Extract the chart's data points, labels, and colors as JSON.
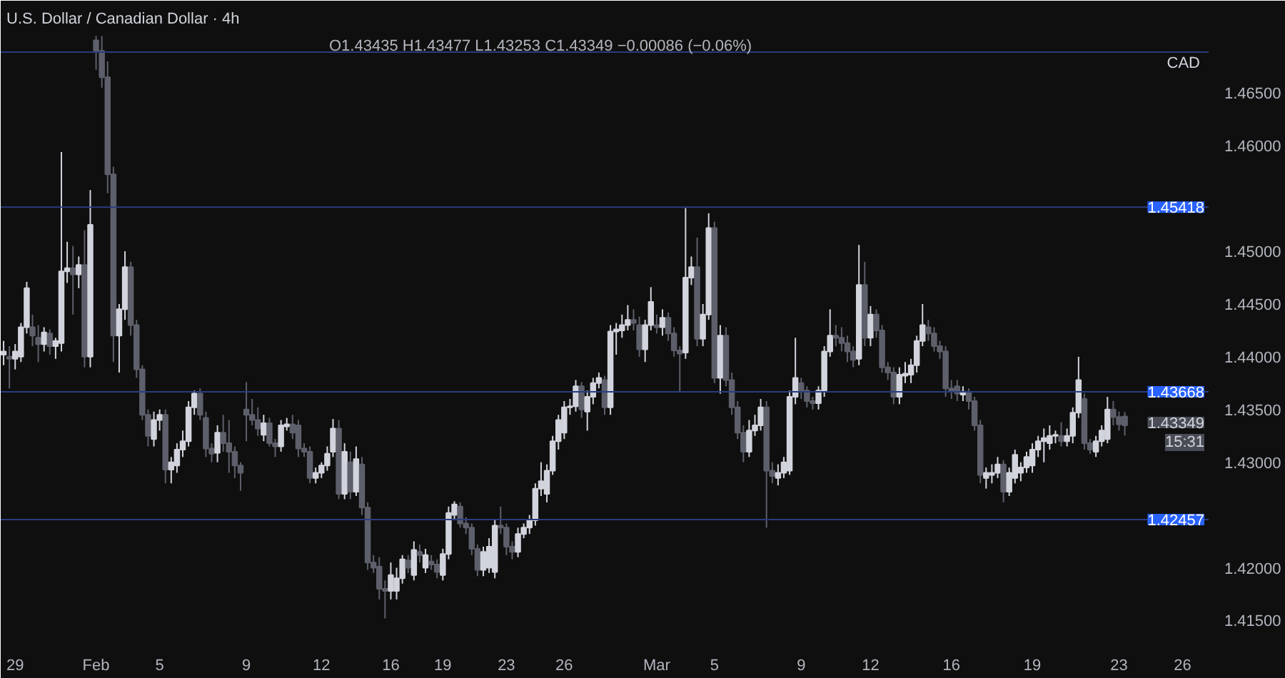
{
  "chart_data": {
    "type": "candlestick",
    "title": "U.S. Dollar / Canadian Dollar · 4h",
    "subtitle": "O1.43435 H1.43477 L1.43253 C1.43349 −0.00086 (−0.06%)",
    "ylabel": "CAD",
    "categories": [
      null,
      null,
      "29",
      null,
      null,
      null,
      null,
      null,
      null,
      null,
      null,
      null,
      null,
      null,
      null,
      null,
      "Feb",
      null,
      null,
      null,
      null,
      null,
      null,
      null,
      null,
      null,
      null,
      "5",
      null,
      null,
      null,
      null,
      null,
      null,
      null,
      null,
      null,
      null,
      null,
      null,
      null,
      null,
      "9",
      null,
      null,
      null,
      null,
      null,
      null,
      null,
      null,
      null,
      null,
      null,
      null,
      "12",
      null,
      null,
      null,
      null,
      null,
      null,
      null,
      null,
      null,
      null,
      null,
      "16",
      null,
      null,
      null,
      null,
      null,
      null,
      null,
      null,
      "19",
      null,
      null,
      null,
      null,
      null,
      null,
      null,
      null,
      null,
      null,
      "23",
      null,
      null,
      null,
      null,
      null,
      null,
      null,
      null,
      null,
      "26",
      null,
      null,
      null,
      null,
      null,
      null,
      null,
      null,
      null,
      null,
      null,
      null,
      null,
      null,
      null,
      "Mar",
      null,
      null,
      null,
      null,
      null,
      null,
      null,
      null,
      null,
      "5",
      null,
      null,
      null,
      null,
      null,
      null,
      null,
      null,
      null,
      null,
      null,
      null,
      null,
      null,
      "9",
      null,
      null,
      null,
      null,
      null,
      null,
      null,
      null,
      null,
      null,
      null,
      "12",
      null,
      null,
      null,
      null,
      null,
      null,
      null,
      null,
      null,
      null,
      null,
      null,
      null,
      "16",
      null,
      null,
      null,
      null,
      null,
      null,
      null,
      null,
      null,
      null,
      null,
      null,
      null,
      "19",
      null,
      null,
      null,
      null,
      null,
      null,
      null,
      null,
      null,
      null,
      null,
      null,
      null,
      null,
      "23",
      null,
      null,
      null,
      null,
      null,
      null,
      null,
      null,
      null,
      null,
      "26",
      null,
      null,
      null,
      null
    ],
    "ohlc": [
      [
        1.4402,
        1.4415,
        1.4392,
        1.4405
      ],
      [
        1.44,
        1.441,
        1.437,
        1.4398
      ],
      [
        1.4398,
        1.4412,
        1.4388,
        1.4405
      ],
      [
        1.44,
        1.4432,
        1.4395,
        1.4428
      ],
      [
        1.4428,
        1.4471,
        1.4422,
        1.4465
      ],
      [
        1.4428,
        1.444,
        1.441,
        1.442
      ],
      [
        1.4418,
        1.443,
        1.4395,
        1.4412
      ],
      [
        1.4412,
        1.4428,
        1.4405,
        1.4423
      ],
      [
        1.4422,
        1.4426,
        1.4402,
        1.441
      ],
      [
        1.441,
        1.4418,
        1.4398,
        1.4415
      ],
      [
        1.4413,
        1.4594,
        1.4405,
        1.4481
      ],
      [
        1.4481,
        1.4509,
        1.447,
        1.4484
      ],
      [
        1.4484,
        1.4505,
        1.444,
        1.4478
      ],
      [
        1.4478,
        1.4495,
        1.4465,
        1.4487
      ],
      [
        1.4487,
        1.452,
        1.439,
        1.44
      ],
      [
        1.44,
        1.4558,
        1.439,
        1.4525
      ],
      [
        1.47,
        1.4704,
        1.4672,
        1.469
      ],
      [
        1.469,
        1.4704,
        1.4655,
        1.4665
      ],
      [
        1.4665,
        1.468,
        1.4555,
        1.4573
      ],
      [
        1.4573,
        1.458,
        1.4395,
        1.442
      ],
      [
        1.442,
        1.445,
        1.4385,
        1.4445
      ],
      [
        1.4445,
        1.45,
        1.4435,
        1.4485
      ],
      [
        1.4485,
        1.449,
        1.442,
        1.443
      ],
      [
        1.443,
        1.4435,
        1.438,
        1.4388
      ],
      [
        1.4388,
        1.4392,
        1.434,
        1.4345
      ],
      [
        1.4345,
        1.435,
        1.4315,
        1.4325
      ],
      [
        1.4322,
        1.4348,
        1.4315,
        1.434
      ],
      [
        1.434,
        1.435,
        1.433,
        1.4345
      ],
      [
        1.4345,
        1.435,
        1.428,
        1.4293
      ],
      [
        1.4293,
        1.4305,
        1.428,
        1.43
      ],
      [
        1.4297,
        1.4318,
        1.429,
        1.4312
      ],
      [
        1.4312,
        1.433,
        1.4305,
        1.432
      ],
      [
        1.432,
        1.4358,
        1.4315,
        1.4352
      ],
      [
        1.4352,
        1.4368,
        1.4345,
        1.4365
      ],
      [
        1.4365,
        1.437,
        1.434,
        1.4345
      ],
      [
        1.4342,
        1.4348,
        1.4305,
        1.4313
      ],
      [
        1.4313,
        1.4318,
        1.43,
        1.4308
      ],
      [
        1.4309,
        1.4335,
        1.43,
        1.4328
      ],
      [
        1.4328,
        1.4345,
        1.431,
        1.4318
      ],
      [
        1.4318,
        1.434,
        1.429,
        1.431
      ],
      [
        1.431,
        1.4315,
        1.4285,
        1.4297
      ],
      [
        1.4297,
        1.43,
        1.4273,
        1.429
      ],
      [
        1.435,
        1.4376,
        1.432,
        1.4345
      ],
      [
        1.4345,
        1.436,
        1.4335,
        1.434
      ],
      [
        1.434,
        1.4352,
        1.4325,
        1.4332
      ],
      [
        1.4326,
        1.4345,
        1.432,
        1.4337
      ],
      [
        1.4337,
        1.4342,
        1.4315,
        1.4318
      ],
      [
        1.4318,
        1.4322,
        1.4305,
        1.4315
      ],
      [
        1.4315,
        1.434,
        1.431,
        1.4335
      ],
      [
        1.4334,
        1.4342,
        1.433,
        1.4336
      ],
      [
        1.4336,
        1.4345,
        1.4322,
        1.4328
      ],
      [
        1.4335,
        1.434,
        1.4305,
        1.4313
      ],
      [
        1.4313,
        1.4318,
        1.4305,
        1.431
      ],
      [
        1.431,
        1.4315,
        1.428,
        1.4285
      ],
      [
        1.4285,
        1.4295,
        1.428,
        1.429
      ],
      [
        1.429,
        1.43,
        1.4285,
        1.4297
      ],
      [
        1.4297,
        1.4315,
        1.4292,
        1.4308
      ],
      [
        1.431,
        1.4341,
        1.4305,
        1.4332
      ],
      [
        1.4332,
        1.434,
        1.4265,
        1.427
      ],
      [
        1.427,
        1.4318,
        1.4265,
        1.431
      ],
      [
        1.43,
        1.431,
        1.4265,
        1.4272
      ],
      [
        1.4272,
        1.4315,
        1.4268,
        1.4303
      ],
      [
        1.4298,
        1.4305,
        1.425,
        1.4257
      ],
      [
        1.4257,
        1.4262,
        1.4198,
        1.4205
      ],
      [
        1.4205,
        1.4212,
        1.4195,
        1.42
      ],
      [
        1.4201,
        1.421,
        1.417,
        1.418
      ],
      [
        1.418,
        1.4188,
        1.4152,
        1.4178
      ],
      [
        1.4178,
        1.4205,
        1.417,
        1.4193
      ],
      [
        1.4178,
        1.42,
        1.417,
        1.419
      ],
      [
        1.419,
        1.4212,
        1.4185,
        1.4208
      ],
      [
        1.4207,
        1.4212,
        1.4195,
        1.42
      ],
      [
        1.4193,
        1.4225,
        1.4188,
        1.4217
      ],
      [
        1.4215,
        1.4222,
        1.4205,
        1.4212
      ],
      [
        1.42,
        1.4218,
        1.4195,
        1.4212
      ],
      [
        1.4206,
        1.4212,
        1.4198,
        1.4203
      ],
      [
        1.4203,
        1.4208,
        1.419,
        1.4196
      ],
      [
        1.4193,
        1.4218,
        1.4188,
        1.4213
      ],
      [
        1.4213,
        1.4258,
        1.4208,
        1.4252
      ],
      [
        1.425,
        1.4263,
        1.4245,
        1.426
      ],
      [
        1.4258,
        1.4262,
        1.4238,
        1.4242
      ],
      [
        1.4242,
        1.4248,
        1.4232,
        1.4238
      ],
      [
        1.4238,
        1.4242,
        1.4212,
        1.4218
      ],
      [
        1.4218,
        1.4222,
        1.4192,
        1.4198
      ],
      [
        1.4198,
        1.422,
        1.4192,
        1.4215
      ],
      [
        1.42,
        1.4228,
        1.4195,
        1.422
      ],
      [
        1.4196,
        1.4245,
        1.419,
        1.424
      ],
      [
        1.424,
        1.4258,
        1.4232,
        1.4238
      ],
      [
        1.4238,
        1.4242,
        1.4212,
        1.422
      ],
      [
        1.422,
        1.4225,
        1.4208,
        1.4215
      ],
      [
        1.4215,
        1.4238,
        1.421,
        1.4232
      ],
      [
        1.4232,
        1.4242,
        1.4228,
        1.4238
      ],
      [
        1.4238,
        1.425,
        1.4232,
        1.4245
      ],
      [
        1.4245,
        1.428,
        1.424,
        1.4275
      ],
      [
        1.4275,
        1.43,
        1.4268,
        1.4282
      ],
      [
        1.427,
        1.4298,
        1.4262,
        1.4292
      ],
      [
        1.4292,
        1.4325,
        1.4288,
        1.432
      ],
      [
        1.432,
        1.4345,
        1.4312,
        1.434
      ],
      [
        1.4328,
        1.4358,
        1.4322,
        1.4352
      ],
      [
        1.4352,
        1.436,
        1.4345,
        1.4353
      ],
      [
        1.4353,
        1.4378,
        1.4348,
        1.4372
      ],
      [
        1.4372,
        1.4376,
        1.4342,
        1.435
      ],
      [
        1.4348,
        1.4368,
        1.433,
        1.4362
      ],
      [
        1.4362,
        1.438,
        1.4355,
        1.4375
      ],
      [
        1.4375,
        1.4385,
        1.437,
        1.438
      ],
      [
        1.4378,
        1.4382,
        1.4345,
        1.4352
      ],
      [
        1.4352,
        1.443,
        1.4345,
        1.4424
      ],
      [
        1.4424,
        1.4432,
        1.4402,
        1.4426
      ],
      [
        1.4425,
        1.444,
        1.4418,
        1.443
      ],
      [
        1.443,
        1.4449,
        1.4425,
        1.4435
      ],
      [
        1.4435,
        1.4445,
        1.4425,
        1.4432
      ],
      [
        1.443,
        1.4438,
        1.44,
        1.4407
      ],
      [
        1.4407,
        1.4435,
        1.4395,
        1.443
      ],
      [
        1.443,
        1.4466,
        1.4425,
        1.4452
      ],
      [
        1.443,
        1.444,
        1.4422,
        1.4428
      ],
      [
        1.4428,
        1.4445,
        1.442,
        1.4437
      ],
      [
        1.4437,
        1.4442,
        1.4415,
        1.4422
      ],
      [
        1.4422,
        1.4428,
        1.44,
        1.4406
      ],
      [
        1.4406,
        1.441,
        1.4367,
        1.4403
      ],
      [
        1.4404,
        1.4541,
        1.4398,
        1.4475
      ],
      [
        1.4475,
        1.4495,
        1.4468,
        1.4485
      ],
      [
        1.4485,
        1.4513,
        1.441,
        1.4417
      ],
      [
        1.4417,
        1.445,
        1.441,
        1.444
      ],
      [
        1.444,
        1.4536,
        1.4435,
        1.4522
      ],
      [
        1.4522,
        1.4528,
        1.4375,
        1.438
      ],
      [
        1.438,
        1.443,
        1.4365,
        1.442
      ],
      [
        1.442,
        1.4428,
        1.4372,
        1.4378
      ],
      [
        1.4378,
        1.4385,
        1.4345,
        1.4352
      ],
      [
        1.4352,
        1.4358,
        1.4322,
        1.4328
      ],
      [
        1.4328,
        1.4335,
        1.43,
        1.431
      ],
      [
        1.431,
        1.434,
        1.4305,
        1.433
      ],
      [
        1.433,
        1.4345,
        1.4325,
        1.4335
      ],
      [
        1.4335,
        1.436,
        1.433,
        1.4352
      ],
      [
        1.4352,
        1.4358,
        1.4238,
        1.4292
      ],
      [
        1.4292,
        1.43,
        1.428,
        1.4287
      ],
      [
        1.4285,
        1.4298,
        1.4278,
        1.429
      ],
      [
        1.429,
        1.4305,
        1.4285,
        1.43
      ],
      [
        1.4292,
        1.4368,
        1.4288,
        1.4362
      ],
      [
        1.4362,
        1.4418,
        1.4355,
        1.438
      ],
      [
        1.4375,
        1.438,
        1.436,
        1.4368
      ],
      [
        1.4368,
        1.4372,
        1.4352,
        1.4358
      ],
      [
        1.4358,
        1.4362,
        1.435,
        1.4356
      ],
      [
        1.4356,
        1.4372,
        1.435,
        1.4368
      ],
      [
        1.4368,
        1.441,
        1.4362,
        1.4405
      ],
      [
        1.4405,
        1.4445,
        1.44,
        1.442
      ],
      [
        1.442,
        1.443,
        1.441,
        1.4418
      ],
      [
        1.4418,
        1.4428,
        1.4405,
        1.4413
      ],
      [
        1.4413,
        1.442,
        1.4395,
        1.4405
      ],
      [
        1.4405,
        1.441,
        1.439,
        1.4397
      ],
      [
        1.4398,
        1.4506,
        1.4392,
        1.4468
      ],
      [
        1.4468,
        1.449,
        1.441,
        1.4418
      ],
      [
        1.4418,
        1.4448,
        1.441,
        1.444
      ],
      [
        1.444,
        1.4445,
        1.4418,
        1.4425
      ],
      [
        1.4425,
        1.443,
        1.4385,
        1.439
      ],
      [
        1.439,
        1.4395,
        1.4378,
        1.4385
      ],
      [
        1.4385,
        1.439,
        1.4355,
        1.4362
      ],
      [
        1.4362,
        1.439,
        1.4355,
        1.4383
      ],
      [
        1.4382,
        1.4395,
        1.4375,
        1.4384
      ],
      [
        1.4383,
        1.4398,
        1.4375,
        1.4392
      ],
      [
        1.4392,
        1.442,
        1.4385,
        1.4415
      ],
      [
        1.4415,
        1.445,
        1.441,
        1.443
      ],
      [
        1.4428,
        1.4435,
        1.4415,
        1.4422
      ],
      [
        1.4422,
        1.4428,
        1.4405,
        1.441
      ],
      [
        1.441,
        1.4415,
        1.4398,
        1.4405
      ],
      [
        1.4405,
        1.441,
        1.4362,
        1.437
      ],
      [
        1.437,
        1.4378,
        1.436,
        1.4367
      ],
      [
        1.4372,
        1.4378,
        1.4358,
        1.4365
      ],
      [
        1.4364,
        1.4372,
        1.4358,
        1.4367
      ],
      [
        1.4367,
        1.437,
        1.435,
        1.4358
      ],
      [
        1.4358,
        1.4362,
        1.433,
        1.4335
      ],
      [
        1.4335,
        1.434,
        1.428,
        1.4288
      ],
      [
        1.4285,
        1.4295,
        1.4275,
        1.429
      ],
      [
        1.4288,
        1.4298,
        1.428,
        1.429
      ],
      [
        1.429,
        1.4305,
        1.4285,
        1.4298
      ],
      [
        1.4298,
        1.4302,
        1.4262,
        1.4272
      ],
      [
        1.4272,
        1.4295,
        1.4268,
        1.429
      ],
      [
        1.4285,
        1.4312,
        1.428,
        1.4307
      ],
      [
        1.429,
        1.43,
        1.4282,
        1.4295
      ],
      [
        1.4295,
        1.431,
        1.429,
        1.4305
      ],
      [
        1.4297,
        1.4318,
        1.429,
        1.4312
      ],
      [
        1.4312,
        1.4325,
        1.4305,
        1.432
      ],
      [
        1.432,
        1.4332,
        1.43,
        1.4323
      ],
      [
        1.4318,
        1.4335,
        1.4312,
        1.4325
      ],
      [
        1.4325,
        1.433,
        1.4318,
        1.4326
      ],
      [
        1.4325,
        1.4338,
        1.4315,
        1.432
      ],
      [
        1.432,
        1.4332,
        1.4315,
        1.4325
      ],
      [
        1.4325,
        1.4352,
        1.4318,
        1.4347
      ],
      [
        1.4347,
        1.44,
        1.4342,
        1.4378
      ],
      [
        1.436,
        1.4365,
        1.4312,
        1.4318
      ],
      [
        1.4318,
        1.4322,
        1.4308,
        1.4312
      ],
      [
        1.431,
        1.4325,
        1.4305,
        1.432
      ],
      [
        1.432,
        1.4335,
        1.4315,
        1.433
      ],
      [
        1.4322,
        1.4362,
        1.4318,
        1.435
      ],
      [
        1.435,
        1.4358,
        1.4335,
        1.4343
      ],
      [
        1.4343,
        1.4348,
        1.433,
        1.4336
      ],
      [
        1.43435,
        1.43477,
        1.43253,
        1.43349
      ],
      null,
      null,
      null,
      null,
      null,
      null,
      null,
      null,
      null,
      null,
      null,
      null,
      null,
      null
    ],
    "ylim": [
      1.413,
      1.4705
    ],
    "yticks": [
      {
        "value": 1.415,
        "label": "1.41500"
      },
      {
        "value": 1.42,
        "label": "1.42000"
      },
      {
        "value": 1.43,
        "label": "1.43000"
      },
      {
        "value": 1.435,
        "label": "1.43500"
      },
      {
        "value": 1.44,
        "label": "1.44000"
      },
      {
        "value": 1.445,
        "label": "1.44500"
      },
      {
        "value": 1.45,
        "label": "1.45000"
      },
      {
        "value": 1.46,
        "label": "1.46000"
      },
      {
        "value": 1.465,
        "label": "1.46500"
      }
    ],
    "ref_lines": [
      {
        "axis": "y",
        "value": 1.46888,
        "label": null,
        "color": "#2a3c80"
      },
      {
        "axis": "y",
        "value": 1.45418,
        "label": "1.45418",
        "color": "#2a3c80"
      },
      {
        "axis": "y",
        "value": 1.43668,
        "label": "1.43668",
        "color": "#2a3c80"
      },
      {
        "axis": "y",
        "value": 1.42457,
        "label": "1.42457",
        "color": "#2a3c80"
      }
    ],
    "annotations": [
      "1.43349",
      "15:31"
    ],
    "grid": false
  }
}
